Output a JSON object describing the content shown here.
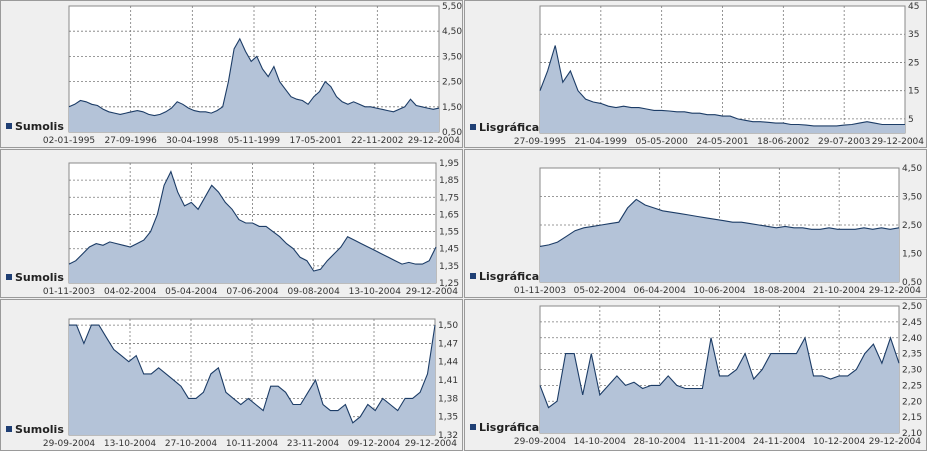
{
  "colors": {
    "fill": "#b4c3d8",
    "line": "#1c3c66",
    "grid": "#7a7a7a",
    "legend_marker": "#1f3f74"
  },
  "chart_data": [
    {
      "type": "area",
      "legend": "Sumolis",
      "ylim": [
        0.5,
        5.5
      ],
      "yticks": [
        "5,50",
        "4,50",
        "3,50",
        "2,50",
        "1,50",
        "0,50"
      ],
      "xticks": [
        "02-01-1995",
        "27-09-1996",
        "30-04-1998",
        "05-11-1999",
        "17-05-2001",
        "22-11-2002",
        "29-12-2004"
      ],
      "values": [
        1.5,
        1.6,
        1.75,
        1.7,
        1.6,
        1.55,
        1.4,
        1.3,
        1.25,
        1.2,
        1.25,
        1.3,
        1.35,
        1.3,
        1.2,
        1.15,
        1.2,
        1.3,
        1.45,
        1.7,
        1.6,
        1.45,
        1.35,
        1.3,
        1.3,
        1.25,
        1.35,
        1.5,
        2.5,
        3.8,
        4.2,
        3.7,
        3.3,
        3.5,
        3.0,
        2.7,
        3.1,
        2.5,
        2.2,
        1.9,
        1.8,
        1.75,
        1.6,
        1.9,
        2.1,
        2.5,
        2.3,
        1.9,
        1.7,
        1.6,
        1.7,
        1.6,
        1.5,
        1.5,
        1.45,
        1.4,
        1.35,
        1.3,
        1.4,
        1.5,
        1.8,
        1.55,
        1.5,
        1.45,
        1.4,
        1.45
      ]
    },
    {
      "type": "area",
      "legend": "Lisgráfica",
      "ylim": [
        0,
        45
      ],
      "yticks": [
        "45",
        "35",
        "25",
        "15",
        "5"
      ],
      "xticks": [
        "27-09-1995",
        "21-04-1999",
        "05-05-2000",
        "24-05-2001",
        "18-06-2002",
        "29-07-2003",
        "29-12-2004"
      ],
      "values": [
        15,
        22,
        31,
        18,
        22,
        15,
        12,
        11,
        10.5,
        9.5,
        9,
        9.5,
        9,
        9,
        8.5,
        8,
        8,
        7.8,
        7.5,
        7.5,
        7,
        7,
        6.5,
        6.5,
        6,
        6,
        5,
        4.5,
        4,
        4,
        3.8,
        3.5,
        3.5,
        3,
        3,
        2.8,
        2.5,
        2.5,
        2.5,
        2.5,
        2.8,
        3,
        3.5,
        4,
        3.5,
        3,
        3,
        3,
        3
      ]
    },
    {
      "type": "area",
      "legend": "Sumolis",
      "ylim": [
        1.25,
        1.95
      ],
      "yticks": [
        "1,95",
        "1,85",
        "1,75",
        "1,65",
        "1,55",
        "1,45",
        "1,35",
        "1,25"
      ],
      "xticks": [
        "01-11-2003",
        "04-02-2004",
        "05-04-2004",
        "07-06-2004",
        "09-08-2004",
        "13-10-2004",
        "29-12-2004"
      ],
      "values": [
        1.36,
        1.38,
        1.42,
        1.46,
        1.48,
        1.47,
        1.49,
        1.48,
        1.47,
        1.46,
        1.48,
        1.5,
        1.55,
        1.65,
        1.82,
        1.9,
        1.78,
        1.7,
        1.72,
        1.68,
        1.75,
        1.82,
        1.78,
        1.72,
        1.68,
        1.62,
        1.6,
        1.6,
        1.58,
        1.58,
        1.55,
        1.52,
        1.48,
        1.45,
        1.4,
        1.38,
        1.32,
        1.33,
        1.38,
        1.42,
        1.46,
        1.52,
        1.5,
        1.48,
        1.46,
        1.44,
        1.42,
        1.4,
        1.38,
        1.36,
        1.37,
        1.36,
        1.36,
        1.38,
        1.46
      ]
    },
    {
      "type": "area",
      "legend": "Lisgráfica",
      "ylim": [
        0.5,
        4.5
      ],
      "yticks": [
        "4,50",
        "3,50",
        "2,50",
        "1,50",
        "0,50"
      ],
      "xticks": [
        "01-11-2003",
        "05-02-2004",
        "06-04-2004",
        "10-06-2004",
        "18-08-2004",
        "21-10-2004",
        "29-12-2004"
      ],
      "values": [
        1.75,
        1.8,
        1.9,
        2.1,
        2.3,
        2.4,
        2.45,
        2.5,
        2.55,
        2.6,
        3.1,
        3.4,
        3.2,
        3.1,
        3.0,
        2.95,
        2.9,
        2.85,
        2.8,
        2.75,
        2.7,
        2.65,
        2.6,
        2.6,
        2.55,
        2.5,
        2.45,
        2.4,
        2.45,
        2.4,
        2.4,
        2.35,
        2.35,
        2.4,
        2.35,
        2.35,
        2.35,
        2.4,
        2.35,
        2.4,
        2.35,
        2.4
      ]
    },
    {
      "type": "area",
      "legend": "Sumolis",
      "ylim": [
        1.32,
        1.51
      ],
      "yticks": [
        "1,50",
        "1,47",
        "1,44",
        "1,41",
        "1,38",
        "1,35",
        "1,32"
      ],
      "xticks": [
        "29-09-2004",
        "13-10-2004",
        "27-10-2004",
        "10-11-2004",
        "23-11-2004",
        "09-12-2004",
        "29-12-2004"
      ],
      "values": [
        1.5,
        1.5,
        1.47,
        1.5,
        1.5,
        1.48,
        1.46,
        1.45,
        1.44,
        1.45,
        1.42,
        1.42,
        1.43,
        1.42,
        1.41,
        1.4,
        1.38,
        1.38,
        1.39,
        1.42,
        1.43,
        1.39,
        1.38,
        1.37,
        1.38,
        1.37,
        1.36,
        1.4,
        1.4,
        1.39,
        1.37,
        1.37,
        1.39,
        1.41,
        1.37,
        1.36,
        1.36,
        1.37,
        1.34,
        1.35,
        1.37,
        1.36,
        1.38,
        1.37,
        1.36,
        1.38,
        1.38,
        1.39,
        1.42,
        1.5
      ]
    },
    {
      "type": "area",
      "legend": "Lisgráfica",
      "ylim": [
        2.1,
        2.5
      ],
      "yticks": [
        "2,50",
        "2,45",
        "2,40",
        "2,35",
        "2,30",
        "2,25",
        "2,20",
        "2,15",
        "2,10"
      ],
      "xticks": [
        "29-09-2004",
        "14-10-2004",
        "28-10-2004",
        "11-11-2004",
        "24-11-2004",
        "10-12-2004",
        "29-12-2004"
      ],
      "values": [
        2.25,
        2.18,
        2.2,
        2.35,
        2.35,
        2.22,
        2.35,
        2.22,
        2.25,
        2.28,
        2.25,
        2.26,
        2.24,
        2.25,
        2.25,
        2.28,
        2.25,
        2.24,
        2.24,
        2.24,
        2.4,
        2.28,
        2.28,
        2.3,
        2.35,
        2.27,
        2.3,
        2.35,
        2.35,
        2.35,
        2.35,
        2.4,
        2.28,
        2.28,
        2.27,
        2.28,
        2.28,
        2.3,
        2.35,
        2.38,
        2.32,
        2.4,
        2.32
      ]
    }
  ]
}
